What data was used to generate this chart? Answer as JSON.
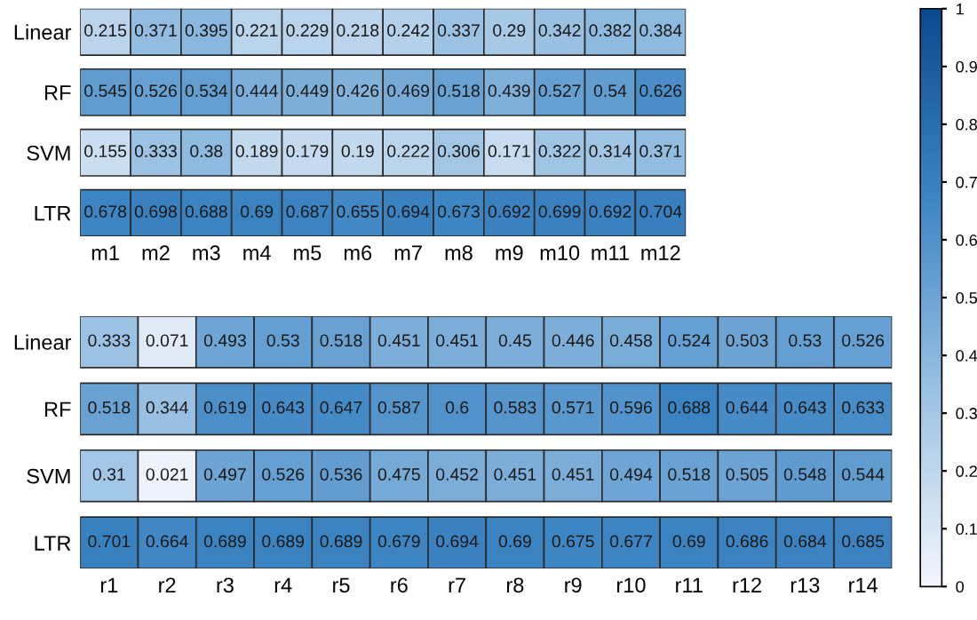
{
  "chart_data": [
    {
      "type": "heatmap",
      "categories": [
        "m1",
        "m2",
        "m3",
        "m4",
        "m5",
        "m6",
        "m7",
        "m8",
        "m9",
        "m10",
        "m11",
        "m12"
      ],
      "y_categories": [
        "Linear",
        "RF",
        "SVM",
        "LTR"
      ],
      "cells": [
        [
          0.215,
          0.371,
          0.395,
          0.221,
          0.229,
          0.218,
          0.242,
          0.337,
          0.29,
          0.342,
          0.382,
          0.384
        ],
        [
          0.545,
          0.526,
          0.534,
          0.444,
          0.449,
          0.426,
          0.469,
          0.518,
          0.439,
          0.527,
          0.54,
          0.626
        ],
        [
          0.155,
          0.333,
          0.38,
          0.189,
          0.179,
          0.19,
          0.222,
          0.306,
          0.171,
          0.322,
          0.314,
          0.371
        ],
        [
          0.678,
          0.698,
          0.688,
          0.69,
          0.687,
          0.655,
          0.694,
          0.673,
          0.692,
          0.699,
          0.692,
          0.704
        ]
      ],
      "data_labels": true,
      "clim": [
        0,
        1
      ],
      "cticks": [
        0,
        0.1,
        0.2,
        0.3,
        0.4,
        0.5,
        0.6,
        0.7,
        0.8,
        0.9,
        1
      ]
    },
    {
      "type": "heatmap",
      "categories": [
        "r1",
        "r2",
        "r3",
        "r4",
        "r5",
        "r6",
        "r7",
        "r8",
        "r9",
        "r10",
        "r11",
        "r12",
        "r13",
        "r14"
      ],
      "y_categories": [
        "Linear",
        "RF",
        "SVM",
        "LTR"
      ],
      "cells": [
        [
          0.333,
          0.071,
          0.493,
          0.53,
          0.518,
          0.451,
          0.451,
          0.45,
          0.446,
          0.458,
          0.524,
          0.503,
          0.53,
          0.526
        ],
        [
          0.518,
          0.344,
          0.619,
          0.643,
          0.647,
          0.587,
          0.6,
          0.583,
          0.571,
          0.596,
          0.688,
          0.644,
          0.643,
          0.633
        ],
        [
          0.31,
          0.021,
          0.497,
          0.526,
          0.536,
          0.475,
          0.452,
          0.451,
          0.451,
          0.494,
          0.518,
          0.505,
          0.548,
          0.544
        ],
        [
          0.701,
          0.664,
          0.689,
          0.689,
          0.689,
          0.679,
          0.694,
          0.69,
          0.675,
          0.677,
          0.69,
          0.686,
          0.684,
          0.685
        ]
      ],
      "data_labels": true
    }
  ]
}
